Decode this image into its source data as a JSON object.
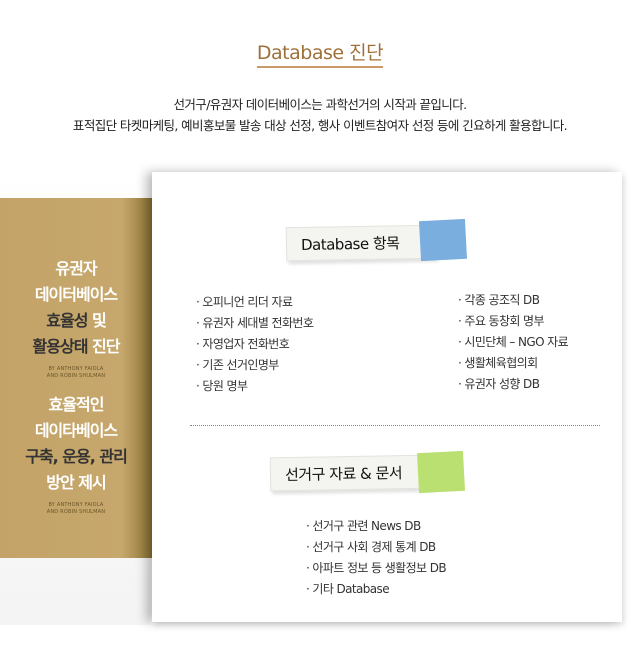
{
  "header": {
    "title": "Database 진단",
    "intro": [
      "선거구/유권자 데이터베이스는 과학선거의 시작과 끝입니다.",
      "표적집단 타켓마케팅, 예비홍보물 발송 대상 선정, 행사 이벤트참여자 선정 등에 긴요하게 활용합니다."
    ]
  },
  "sidebar": {
    "block1": [
      "유권자",
      "데이터베이스",
      "효율성",
      "및",
      "활용상태",
      "진단"
    ],
    "byline1": [
      "BY ANTHONY FAIOLA",
      "AND ROBIN SHULMAN"
    ],
    "block2": [
      "효율적인",
      "데이타베이스",
      "구축, 운용, 관리",
      "방안 제시"
    ],
    "byline2": [
      "BY ANTHONY FAIOLA",
      "AND ROBIN SHULMAN"
    ],
    "color": "#c3a368"
  },
  "section1": {
    "label": "Database 항목",
    "note_color": "#7aaede",
    "left": [
      "· 오피니언 리더 자료",
      "· 유권자 세대별 전화번호",
      "· 자영업자 전화번호",
      "· 기존 선거인명부",
      "· 당원 명부"
    ],
    "right": [
      "· 각종 공조직 DB",
      "· 주요 동창회 명부",
      "· 시민단체 – NGO 자료",
      "· 생활체육협의회",
      "· 유권자 성향 DB"
    ]
  },
  "section2": {
    "label": "선거구 자료 & 문서",
    "note_color": "#b9e070",
    "items": [
      "· 선거구 관련 News  DB",
      "· 선거구 사회 경제 통계  DB",
      "· 아파트 정보 등 생활정보 DB",
      "· 기타 Database"
    ]
  },
  "accent": "#a0703a"
}
